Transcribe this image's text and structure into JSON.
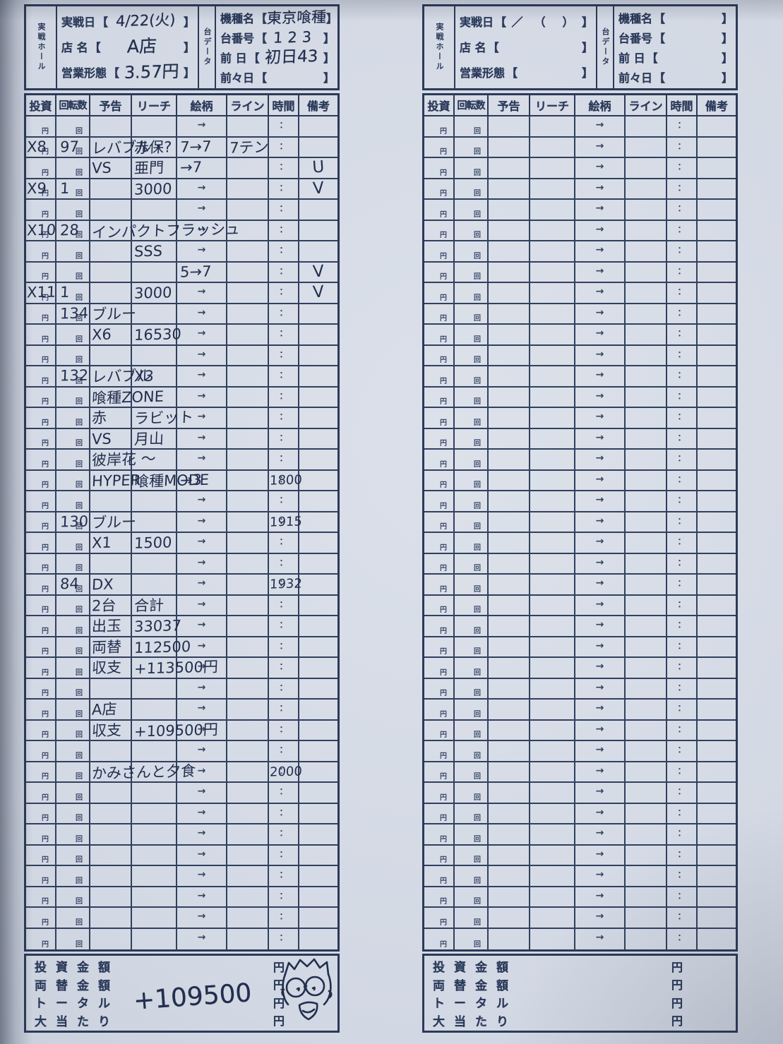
{
  "labels": {
    "hall_vertical": "実戦ホール",
    "data_vertical": "台データ",
    "date_label": "実戦日",
    "shop_label": "店 名",
    "biz_label": "営業形態",
    "machine_label": "機種名",
    "machine_no_label": "台番号",
    "prev_day_label": "前 日",
    "prev2_day_label": "前々日",
    "bracket_open": "【",
    "bracket_close": "】",
    "blank_date_format": "／　（　）"
  },
  "table": {
    "headers": [
      "投資",
      "回転数",
      "予告",
      "リーチ",
      "絵柄",
      "ライン",
      "時間",
      "備考"
    ],
    "yen_mark": "円",
    "kai_mark": "回",
    "arrow_mark": "→",
    "colon_mark": "：",
    "row_count": 40
  },
  "totals": {
    "labels": [
      "投資金額",
      "両替金額",
      "トータル",
      "大当たり"
    ],
    "yen": "円"
  },
  "forms": [
    {
      "name": "left-filled-record",
      "fields": {
        "date": "4/22(火)",
        "shop": "A店",
        "biz": "3.57円",
        "machine": "東京喰種",
        "machine_no": "123",
        "prev_day": "初日43",
        "prev2_day": ""
      },
      "total_value": "+109500",
      "rows": [
        {},
        {
          "invest": "X8",
          "spins": "97",
          "yokoku": "レバブル・",
          "reach": "赤保?",
          "pattern": "7→7",
          "line": "7テン"
        },
        {
          "yokoku": "VS",
          "reach": "亜門",
          "pattern": "→7",
          "note": "U"
        },
        {
          "invest": "X9",
          "spins": "1",
          "reach": "3000",
          "note": "V"
        },
        {},
        {
          "invest": "X10",
          "spins": "28",
          "yokoku": "インパクトフラッシュ"
        },
        {
          "reach": "SSS"
        },
        {
          "pattern": "5→7",
          "note": "V"
        },
        {
          "invest": "X11",
          "spins": "1",
          "reach": "3000",
          "note": "V"
        },
        {
          "spins": "134",
          "yokoku": "ブルー"
        },
        {
          "yokoku": "X6",
          "reach": "16530"
        },
        {},
        {
          "spins": "132",
          "yokoku": "レバブル",
          "reach": "X3"
        },
        {
          "yokoku": "喰種ZONE"
        },
        {
          "yokoku": "赤",
          "reach": "ラビット"
        },
        {
          "yokoku": "VS",
          "reach": "月山"
        },
        {
          "yokoku": "彼岸花 〜"
        },
        {
          "yokoku": "HYPER",
          "reach": "喰種MODE",
          "pattern": "→3",
          "time": "1800"
        },
        {},
        {
          "spins": "130",
          "yokoku": "ブルー",
          "time": "1915"
        },
        {
          "yokoku": "X1",
          "reach": "1500"
        },
        {},
        {
          "spins": "84",
          "yokoku": "DX",
          "time": "1932"
        },
        {
          "yokoku": "2台",
          "reach": "合計"
        },
        {
          "yokoku": "出玉",
          "reach": "33037"
        },
        {
          "yokoku": "両替",
          "reach": "112500"
        },
        {
          "yokoku": "収支",
          "reach": "+113500円"
        },
        {},
        {
          "yokoku": "A店"
        },
        {
          "yokoku": "収支",
          "reach": "+109500円"
        },
        {},
        {
          "yokoku": "かみさんと夕食",
          "time": "2000"
        },
        {},
        {},
        {},
        {},
        {},
        {},
        {},
        {}
      ]
    },
    {
      "name": "right-blank-record",
      "fields": {
        "date": "",
        "shop": "",
        "biz": "",
        "machine": "",
        "machine_no": "",
        "prev_day": "",
        "prev2_day": ""
      },
      "total_value": "",
      "rows": []
    }
  ]
}
